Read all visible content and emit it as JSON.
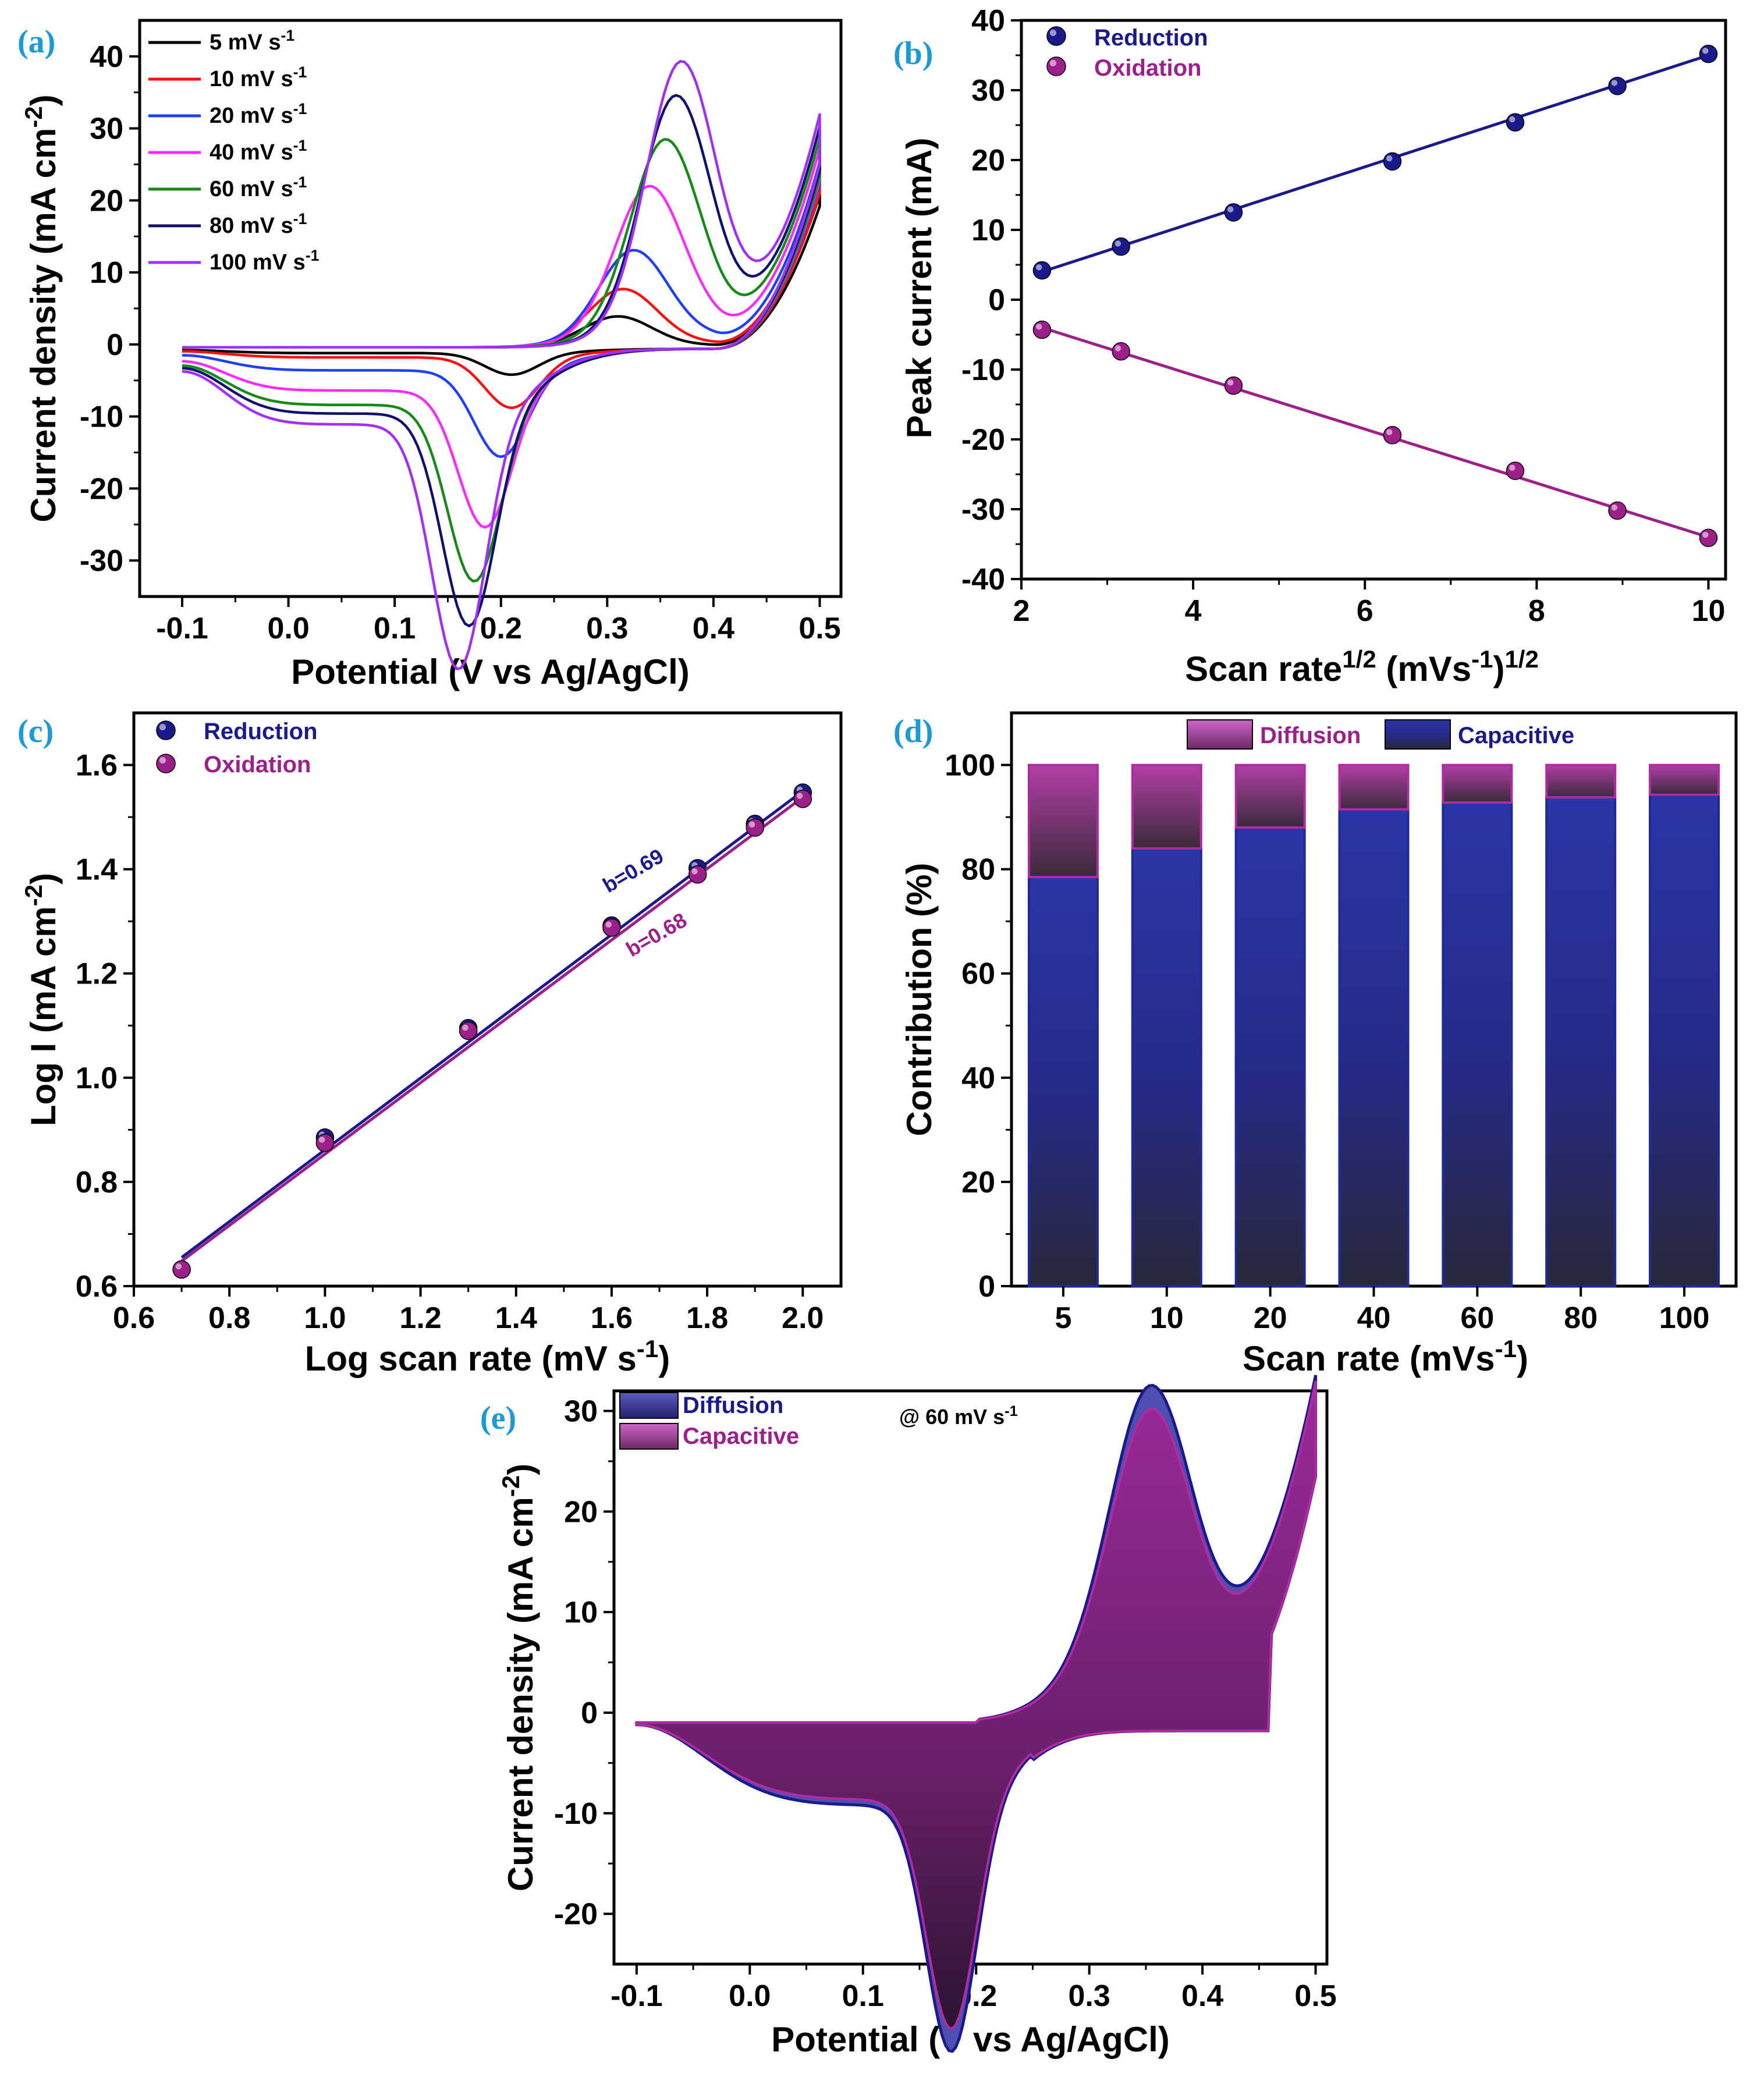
{
  "colors": {
    "reduction": "#1a1a8c",
    "oxidation": "#9c1f8a",
    "panel_label": "#1b9ad6"
  },
  "chart_data": [
    {
      "id": "a",
      "panel_label": "(a)",
      "type": "line",
      "xlabel": "Potential (V vs Ag/AgCl)",
      "ylabel": "Current density (mA cm",
      "ylabel_sup": "-2",
      "ylabel_tail": ")",
      "xlim": [
        -0.14,
        0.52
      ],
      "ylim": [
        -35,
        45
      ],
      "xticks": [
        -0.1,
        0.0,
        0.1,
        0.2,
        0.3,
        0.4,
        0.5
      ],
      "xtick_labels": [
        "-0.1",
        "0.0",
        "0.1",
        "0.2",
        "0.3",
        "0.4",
        "0.5"
      ],
      "yticks": [
        -30,
        -20,
        -10,
        0,
        10,
        20,
        30,
        40
      ],
      "ytick_labels": [
        "-30",
        "-20",
        "-10",
        "0",
        "10",
        "20",
        "30",
        "40"
      ],
      "series": [
        {
          "name": "5 mV s",
          "sup": "-1",
          "color": "#000000",
          "ox_peak": 4,
          "red_peak": -3,
          "ox_pos": 0.31,
          "red_pos": 0.21,
          "cap": 0.6,
          "end": 22
        },
        {
          "name": "10 mV s",
          "sup": "-1",
          "color": "#ff1010",
          "ox_peak": 7.5,
          "red_peak": -7,
          "ox_pos": 0.315,
          "red_pos": 0.21,
          "cap": 1.2,
          "end": 24
        },
        {
          "name": "20 mV s",
          "sup": "-1",
          "color": "#1f3fff",
          "ox_peak": 12,
          "red_peak": -12,
          "ox_pos": 0.325,
          "red_pos": 0.2,
          "cap": 3,
          "end": 25.5
        },
        {
          "name": "40 mV s",
          "sup": "-1",
          "color": "#ff2bff",
          "ox_peak": 19.5,
          "red_peak": -19,
          "ox_pos": 0.34,
          "red_pos": 0.185,
          "cap": 5.8,
          "end": 26
        },
        {
          "name": "60 mV s",
          "sup": "-1",
          "color": "#168a16",
          "ox_peak": 25,
          "red_peak": -24.5,
          "ox_pos": 0.355,
          "red_pos": 0.175,
          "cap": 7.8,
          "end": 26.5
        },
        {
          "name": "80 mV s",
          "sup": "-1",
          "color": "#101070",
          "ox_peak": 30.5,
          "red_peak": -29.5,
          "ox_pos": 0.365,
          "red_pos": 0.17,
          "cap": 9,
          "end": 27.5
        },
        {
          "name": "100 mV s",
          "sup": "-1",
          "color": "#a030ff",
          "ox_peak": 34.5,
          "red_peak": -34,
          "ox_pos": 0.37,
          "red_pos": 0.16,
          "cap": 10.5,
          "end": 28.5
        }
      ]
    },
    {
      "id": "b",
      "panel_label": "(b)",
      "type": "scatter",
      "xlabel": "Scan rate",
      "xlabel_sup": "1/2",
      "xlabel_mid": " (mVs",
      "xlabel_sup2": "-1",
      "xlabel_tail": ")",
      "xlabel_sup3": "1/2",
      "ylabel": "Peak current (mA)",
      "xlim": [
        2,
        10.2
      ],
      "ylim": [
        -40,
        40
      ],
      "xticks": [
        2,
        4,
        6,
        8,
        10
      ],
      "xtick_labels": [
        "2",
        "4",
        "6",
        "8",
        "10"
      ],
      "yticks": [
        -40,
        -30,
        -20,
        -10,
        0,
        10,
        20,
        30,
        40
      ],
      "ytick_labels": [
        "-40",
        "-30",
        "-20",
        "-10",
        "0",
        "10",
        "20",
        "30",
        "40"
      ],
      "series": [
        {
          "name": "Reduction",
          "x": [
            2.24,
            3.16,
            4.47,
            6.32,
            7.75,
            8.94,
            10.0
          ],
          "y": [
            4.2,
            7.6,
            12.5,
            19.8,
            25.4,
            30.6,
            35.2
          ],
          "fit": [
            [
              2.24,
              4.0
            ],
            [
              10.0,
              35.0
            ]
          ]
        },
        {
          "name": "Oxidation",
          "x": [
            2.24,
            3.16,
            4.47,
            6.32,
            7.75,
            8.94,
            10.0
          ],
          "y": [
            -4.3,
            -7.4,
            -12.3,
            -19.4,
            -24.5,
            -30.2,
            -34.1
          ],
          "fit": [
            [
              2.24,
              -4.0
            ],
            [
              10.0,
              -34.0
            ]
          ]
        }
      ]
    },
    {
      "id": "c",
      "panel_label": "(c)",
      "type": "scatter",
      "xlabel": "Log scan rate (mV s",
      "xlabel_sup": "-1",
      "xlabel_tail": ")",
      "ylabel": "Log I (mA cm",
      "ylabel_sup": "-2",
      "ylabel_tail": ")",
      "xlim": [
        0.6,
        2.08
      ],
      "ylim": [
        0.6,
        1.7
      ],
      "xticks": [
        0.6,
        0.8,
        1.0,
        1.2,
        1.4,
        1.6,
        1.8,
        2.0
      ],
      "xtick_labels": [
        "0.6",
        "0.8",
        "1.0",
        "1.2",
        "1.4",
        "1.6",
        "1.8",
        "2.0"
      ],
      "yticks": [
        0.6,
        0.8,
        1.0,
        1.2,
        1.4,
        1.6
      ],
      "ytick_labels": [
        "0.6",
        "0.8",
        "1.0",
        "1.2",
        "1.4",
        "1.6"
      ],
      "annotations": [
        "b=0.69",
        "b=0.68"
      ],
      "series": [
        {
          "name": "Reduction",
          "x": [
            0.7,
            1.0,
            1.3,
            1.6,
            1.78,
            1.9,
            2.0
          ],
          "y": [
            0.632,
            0.885,
            1.095,
            1.292,
            1.402,
            1.487,
            1.547
          ],
          "fit": [
            [
              0.7,
              0.655
            ],
            [
              2.0,
              1.55
            ]
          ]
        },
        {
          "name": "Oxidation",
          "x": [
            0.7,
            1.0,
            1.3,
            1.6,
            1.78,
            1.9,
            2.0
          ],
          "y": [
            0.632,
            0.875,
            1.09,
            1.288,
            1.39,
            1.48,
            1.535
          ],
          "fit": [
            [
              0.7,
              0.648
            ],
            [
              2.0,
              1.538
            ]
          ]
        }
      ]
    },
    {
      "id": "d",
      "panel_label": "(d)",
      "type": "bar",
      "xlabel": "Scan rate (mVs",
      "xlabel_sup": "-1",
      "xlabel_tail": ")",
      "ylabel": "Contribution (%)",
      "ylim": [
        0,
        110
      ],
      "categories": [
        "5",
        "10",
        "20",
        "40",
        "60",
        "80",
        "100"
      ],
      "yticks": [
        0,
        20,
        40,
        60,
        80,
        100
      ],
      "ytick_labels": [
        "0",
        "20",
        "40",
        "60",
        "80",
        "100"
      ],
      "series": [
        {
          "name": "Capacitive",
          "values": [
            78.5,
            84,
            88,
            91.5,
            92.8,
            93.8,
            94.3
          ]
        },
        {
          "name": "Diffusion",
          "values": [
            21.5,
            16,
            12,
            8.5,
            7.2,
            6.2,
            5.7
          ]
        }
      ],
      "legend": [
        "Diffusion",
        "Capacitive"
      ]
    },
    {
      "id": "e",
      "panel_label": "(e)",
      "type": "area",
      "xlabel": "Potential (V vs Ag/AgCl)",
      "ylabel": "Current density (mA cm",
      "ylabel_sup": "-2",
      "ylabel_tail": ")",
      "xlim": [
        -0.12,
        0.51
      ],
      "ylim": [
        -25,
        32
      ],
      "xticks": [
        -0.1,
        0.0,
        0.1,
        0.2,
        0.3,
        0.4,
        0.5
      ],
      "xtick_labels": [
        "-0.1",
        "0.0",
        "0.1",
        "0.2",
        "0.3",
        "0.4",
        "0.5"
      ],
      "yticks": [
        -20,
        -10,
        0,
        10,
        20,
        30
      ],
      "ytick_labels": [
        "-20",
        "-10",
        "0",
        "10",
        "20",
        "30"
      ],
      "annotation": "@ 60 mV s",
      "annotation_sup": "-1",
      "legend": [
        "Diffusion",
        "Capacitive"
      ]
    }
  ]
}
